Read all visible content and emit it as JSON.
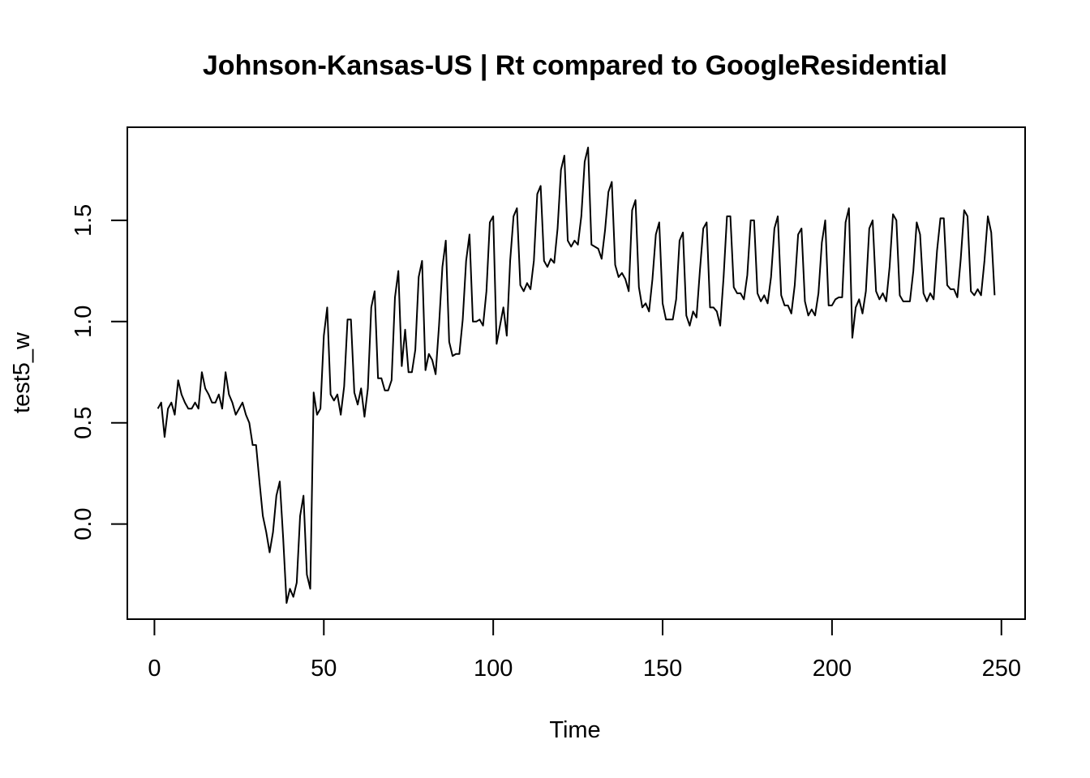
{
  "chart_data": {
    "type": "line",
    "title": "Johnson-Kansas-US | Rt compared to GoogleResidential",
    "xlabel": "Time",
    "ylabel": "test5_w",
    "xlim": [
      -8,
      257
    ],
    "ylim": [
      -0.47,
      1.96
    ],
    "xticks": [
      0,
      50,
      100,
      150,
      200,
      250
    ],
    "yticks": [
      0.0,
      0.5,
      1.0,
      1.5
    ],
    "xtick_labels": [
      "0",
      "50",
      "100",
      "150",
      "200",
      "250"
    ],
    "ytick_labels": [
      "0.0",
      "0.5",
      "1.0",
      "1.5"
    ],
    "grid": false,
    "series": [
      {
        "x_start": 1,
        "values": [
          0.57,
          0.6,
          0.43,
          0.57,
          0.6,
          0.54,
          0.71,
          0.64,
          0.6,
          0.57,
          0.57,
          0.6,
          0.57,
          0.75,
          0.67,
          0.64,
          0.6,
          0.6,
          0.64,
          0.57,
          0.75,
          0.64,
          0.6,
          0.54,
          0.57,
          0.6,
          0.54,
          0.5,
          0.39,
          0.39,
          0.21,
          0.04,
          -0.04,
          -0.14,
          -0.04,
          0.14,
          0.21,
          -0.07,
          -0.39,
          -0.32,
          -0.36,
          -0.29,
          0.04,
          0.14,
          -0.25,
          -0.32,
          0.65,
          0.54,
          0.57,
          0.93,
          1.07,
          0.64,
          0.61,
          0.64,
          0.54,
          0.68,
          1.01,
          1.01,
          0.65,
          0.59,
          0.67,
          0.53,
          0.67,
          1.07,
          1.15,
          0.72,
          0.72,
          0.66,
          0.66,
          0.71,
          1.12,
          1.25,
          0.78,
          0.96,
          0.75,
          0.75,
          0.86,
          1.22,
          1.3,
          0.76,
          0.84,
          0.81,
          0.74,
          0.98,
          1.27,
          1.4,
          0.9,
          0.83,
          0.84,
          0.84,
          1.01,
          1.3,
          1.43,
          1.0,
          1.0,
          1.01,
          0.98,
          1.15,
          1.49,
          1.52,
          0.89,
          0.98,
          1.07,
          0.93,
          1.3,
          1.52,
          1.56,
          1.18,
          1.15,
          1.19,
          1.16,
          1.3,
          1.63,
          1.67,
          1.3,
          1.27,
          1.31,
          1.29,
          1.46,
          1.75,
          1.82,
          1.4,
          1.37,
          1.4,
          1.38,
          1.52,
          1.79,
          1.86,
          1.38,
          1.37,
          1.36,
          1.31,
          1.45,
          1.64,
          1.69,
          1.28,
          1.22,
          1.24,
          1.21,
          1.15,
          1.55,
          1.6,
          1.17,
          1.07,
          1.09,
          1.05,
          1.21,
          1.43,
          1.49,
          1.09,
          1.01,
          1.01,
          1.01,
          1.11,
          1.4,
          1.44,
          1.03,
          0.98,
          1.05,
          1.02,
          1.25,
          1.46,
          1.49,
          1.07,
          1.07,
          1.05,
          0.98,
          1.22,
          1.52,
          1.52,
          1.17,
          1.14,
          1.14,
          1.11,
          1.23,
          1.5,
          1.5,
          1.14,
          1.1,
          1.13,
          1.09,
          1.22,
          1.46,
          1.52,
          1.13,
          1.08,
          1.08,
          1.04,
          1.18,
          1.43,
          1.46,
          1.1,
          1.03,
          1.06,
          1.03,
          1.14,
          1.39,
          1.5,
          1.08,
          1.08,
          1.11,
          1.12,
          1.12,
          1.49,
          1.56,
          0.92,
          1.07,
          1.11,
          1.04,
          1.15,
          1.46,
          1.5,
          1.15,
          1.11,
          1.14,
          1.1,
          1.27,
          1.53,
          1.5,
          1.13,
          1.1,
          1.1,
          1.1,
          1.25,
          1.49,
          1.43,
          1.14,
          1.1,
          1.14,
          1.11,
          1.35,
          1.51,
          1.51,
          1.18,
          1.16,
          1.16,
          1.12,
          1.31,
          1.55,
          1.52,
          1.15,
          1.13,
          1.16,
          1.13,
          1.3,
          1.52,
          1.44,
          1.13
        ]
      }
    ]
  }
}
